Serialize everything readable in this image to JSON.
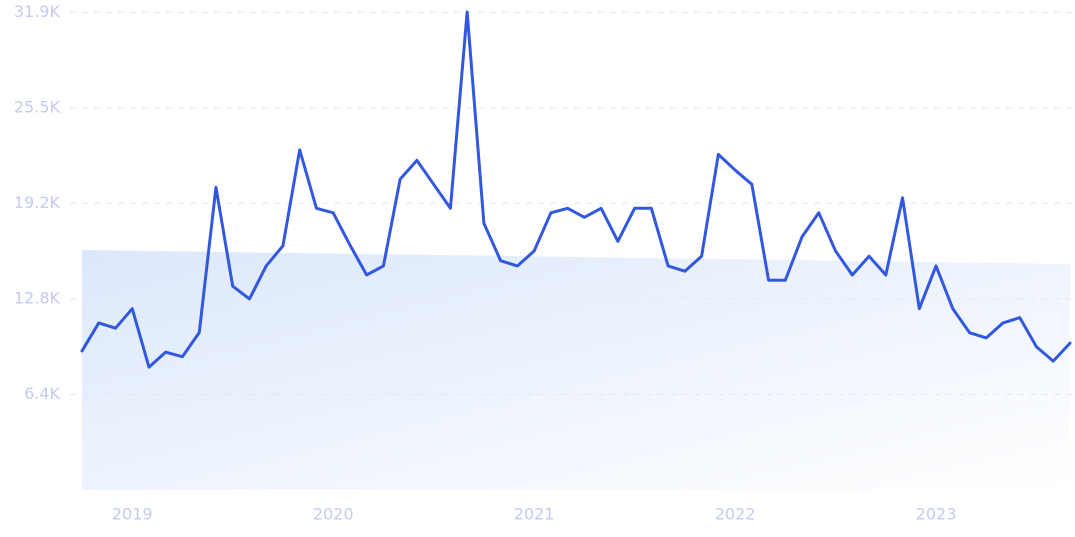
{
  "chart_data": {
    "type": "line",
    "categories": [
      null,
      null,
      null,
      "2019",
      null,
      null,
      null,
      null,
      null,
      null,
      null,
      null,
      null,
      null,
      null,
      "2020",
      null,
      null,
      null,
      null,
      null,
      null,
      null,
      null,
      null,
      null,
      null,
      "2021",
      null,
      null,
      null,
      null,
      null,
      null,
      null,
      null,
      null,
      null,
      null,
      "2022",
      null,
      null,
      null,
      null,
      null,
      null,
      null,
      null,
      null,
      null,
      null,
      "2023",
      null,
      null,
      null,
      null,
      null,
      null,
      null,
      null
    ],
    "values": [
      9280,
      11150,
      10800,
      12100,
      8200,
      9200,
      8900,
      10500,
      20200,
      13600,
      12750,
      14950,
      16300,
      22700,
      18800,
      18500,
      16350,
      14350,
      14950,
      20750,
      22000,
      20400,
      18800,
      31900,
      17800,
      15300,
      14950,
      15950,
      18500,
      18800,
      18200,
      18800,
      16600,
      18800,
      18800,
      14950,
      14600,
      15600,
      22400,
      21350,
      20400,
      14000,
      14000,
      16900,
      18500,
      15950,
      14350,
      15600,
      14350,
      19500,
      12100,
      14950,
      12100,
      10500,
      10150,
      11150,
      11500,
      9550,
      8600,
      9800
    ],
    "color": "#3358e0",
    "ylim": [
      0,
      31900
    ],
    "yticks": [
      {
        "value": 6375,
        "label": "6.4K"
      },
      {
        "value": 12750,
        "label": "12.8K"
      },
      {
        "value": 19125,
        "label": "19.2K"
      },
      {
        "value": 25500,
        "label": "25.5K"
      },
      {
        "value": 31875,
        "label": "31.9K"
      }
    ],
    "grid": true
  }
}
